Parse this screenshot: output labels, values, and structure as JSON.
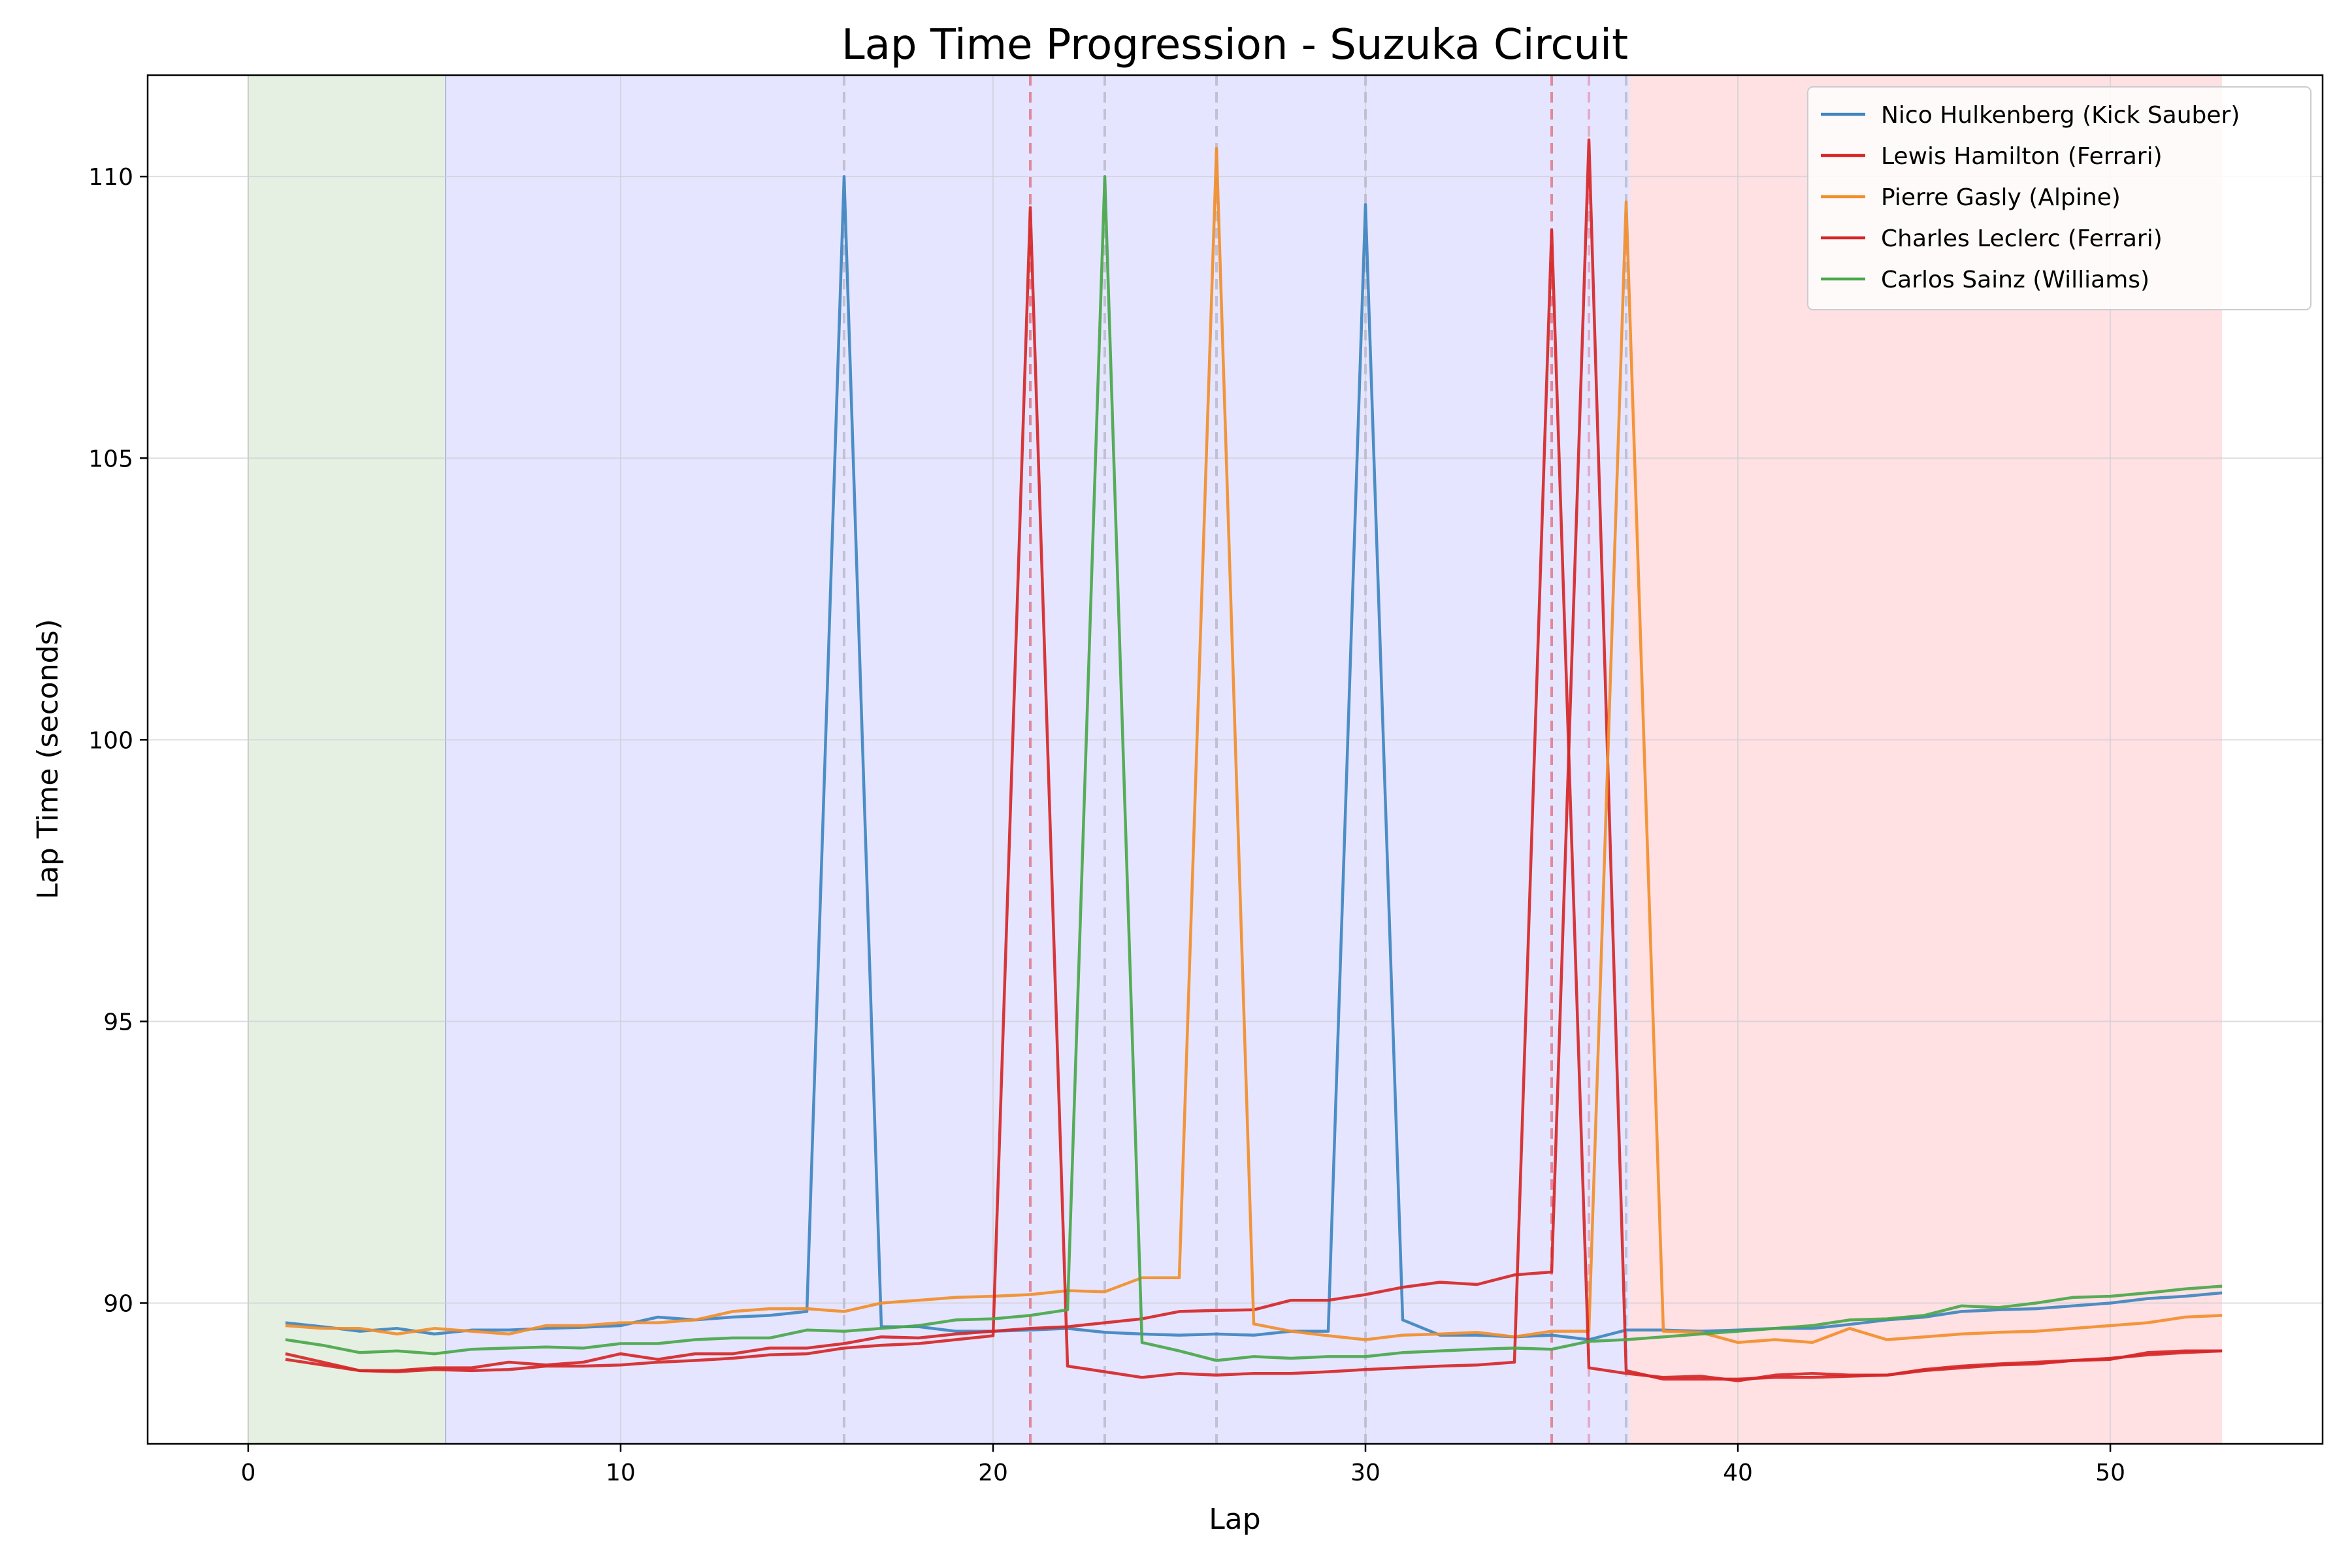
{
  "chart_data": {
    "type": "line",
    "title": "Lap Time Progression - Suzuka Circuit",
    "xlabel": "Lap",
    "ylabel": "Lap Time (seconds)",
    "xlim": [
      -2.7,
      55.7
    ],
    "ylim": [
      87.5,
      111.8
    ],
    "xticks": [
      0,
      10,
      20,
      30,
      40,
      50
    ],
    "yticks": [
      90,
      95,
      100,
      105,
      110
    ],
    "grid": true,
    "legend": "top-right",
    "phase_bands": [
      {
        "from": 0,
        "to": 5.3,
        "color": "#e5f0e3"
      },
      {
        "from": 5.3,
        "to": 37.1,
        "color": "#e5e5ff"
      },
      {
        "from": 37.1,
        "to": 53,
        "color": "#ffe0e3"
      }
    ],
    "pit_markers": [
      {
        "lap": 16,
        "color": "#bbbbcc"
      },
      {
        "lap": 21,
        "color": "#e07a8a"
      },
      {
        "lap": 23,
        "color": "#bbbbcc"
      },
      {
        "lap": 26,
        "color": "#bbbbcc"
      },
      {
        "lap": 30,
        "color": "#bbbbcc"
      },
      {
        "lap": 35,
        "color": "#e07a8a"
      },
      {
        "lap": 36,
        "color": "#e0a3bf"
      },
      {
        "lap": 37,
        "color": "#bbbbcc"
      }
    ],
    "series": [
      {
        "name": "Nico Hulkenberg (Kick Sauber)",
        "color": "#3f85c0",
        "x": [
          1,
          2,
          3,
          4,
          5,
          6,
          7,
          8,
          9,
          10,
          11,
          12,
          13,
          14,
          15,
          16,
          17,
          18,
          19,
          20,
          21,
          22,
          23,
          24,
          25,
          26,
          27,
          28,
          29,
          30,
          31,
          32,
          33,
          34,
          35,
          36,
          37,
          38,
          39,
          40,
          41,
          42,
          43,
          44,
          45,
          46,
          47,
          48,
          49,
          50,
          51,
          52,
          53
        ],
        "y": [
          89.65,
          89.58,
          89.5,
          89.55,
          89.45,
          89.52,
          89.52,
          89.55,
          89.57,
          89.6,
          89.75,
          89.7,
          89.75,
          89.78,
          89.85,
          110.0,
          89.58,
          89.58,
          89.5,
          89.5,
          89.52,
          89.55,
          89.48,
          89.45,
          89.43,
          89.45,
          89.43,
          89.5,
          89.5,
          109.5,
          89.7,
          89.43,
          89.43,
          89.4,
          89.43,
          89.35,
          89.52,
          89.52,
          89.5,
          89.52,
          89.55,
          89.55,
          89.62,
          89.7,
          89.75,
          89.85,
          89.88,
          89.9,
          89.95,
          90.0,
          90.08,
          90.12,
          90.18
        ]
      },
      {
        "name": "Lewis Hamilton (Ferrari)",
        "color": "#d62728",
        "x": [
          1,
          2,
          3,
          4,
          5,
          6,
          7,
          8,
          9,
          10,
          11,
          12,
          13,
          14,
          15,
          16,
          17,
          18,
          19,
          20,
          21,
          22,
          23,
          24,
          25,
          26,
          27,
          28,
          29,
          30,
          31,
          32,
          33,
          34,
          35,
          36,
          37,
          38,
          39,
          40,
          41,
          42,
          43,
          44,
          45,
          46,
          47,
          48,
          49,
          50,
          51,
          52,
          53
        ],
        "y": [
          89.0,
          88.9,
          88.8,
          88.8,
          88.85,
          88.85,
          88.95,
          88.9,
          88.95,
          89.1,
          89.0,
          89.1,
          89.1,
          89.2,
          89.2,
          89.28,
          89.4,
          89.38,
          89.45,
          89.5,
          89.55,
          89.58,
          89.65,
          89.72,
          89.85,
          89.87,
          89.88,
          90.05,
          90.05,
          90.15,
          90.28,
          90.37,
          90.33,
          90.5,
          90.55,
          110.65,
          88.8,
          88.65,
          88.65,
          88.65,
          88.68,
          88.68,
          88.7,
          88.72,
          88.82,
          88.88,
          88.92,
          88.95,
          88.98,
          89.02,
          89.08,
          89.12,
          89.15
        ]
      },
      {
        "name": "Pierre Gasly (Alpine)",
        "color": "#f28e2b",
        "x": [
          1,
          2,
          3,
          4,
          5,
          6,
          7,
          8,
          9,
          10,
          11,
          12,
          13,
          14,
          15,
          16,
          17,
          18,
          19,
          20,
          21,
          22,
          23,
          24,
          25,
          26,
          27,
          28,
          29,
          30,
          31,
          32,
          33,
          34,
          35,
          36,
          37,
          38,
          39,
          40,
          41,
          42,
          43,
          44,
          45,
          46,
          47,
          48,
          49,
          50,
          51,
          52,
          53
        ],
        "y": [
          89.6,
          89.55,
          89.55,
          89.45,
          89.55,
          89.5,
          89.45,
          89.6,
          89.6,
          89.65,
          89.65,
          89.7,
          89.85,
          89.9,
          89.9,
          89.85,
          90.0,
          90.05,
          90.1,
          90.12,
          90.15,
          90.22,
          90.2,
          90.45,
          90.45,
          110.5,
          89.63,
          89.5,
          89.42,
          89.35,
          89.43,
          89.45,
          89.48,
          89.4,
          89.5,
          89.5,
          109.55,
          89.5,
          89.48,
          89.3,
          89.35,
          89.3,
          89.55,
          89.35,
          89.4,
          89.45,
          89.48,
          89.5,
          89.55,
          89.6,
          89.65,
          89.75,
          89.78
        ]
      },
      {
        "name": "Charles Leclerc (Ferrari)",
        "color": "#d62728",
        "x": [
          1,
          2,
          3,
          4,
          5,
          6,
          7,
          8,
          9,
          10,
          11,
          12,
          13,
          14,
          15,
          16,
          17,
          18,
          19,
          20,
          21,
          22,
          23,
          24,
          25,
          26,
          27,
          28,
          29,
          30,
          31,
          32,
          33,
          34,
          35,
          36,
          37,
          38,
          39,
          40,
          41,
          42,
          43,
          44,
          45,
          46,
          47,
          48,
          49,
          50,
          51,
          52,
          53
        ],
        "y": [
          89.1,
          88.95,
          88.8,
          88.78,
          88.82,
          88.8,
          88.82,
          88.88,
          88.88,
          88.9,
          88.95,
          88.98,
          89.02,
          89.08,
          89.1,
          89.2,
          89.25,
          89.28,
          89.35,
          89.42,
          109.45,
          88.88,
          88.78,
          88.68,
          88.75,
          88.72,
          88.75,
          88.75,
          88.78,
          88.82,
          88.85,
          88.88,
          88.9,
          88.95,
          109.05,
          88.85,
          88.75,
          88.68,
          88.7,
          88.62,
          88.72,
          88.75,
          88.72,
          88.72,
          88.8,
          88.85,
          88.9,
          88.92,
          88.98,
          89.0,
          89.12,
          89.15,
          89.15
        ]
      },
      {
        "name": "Carlos Sainz (Williams)",
        "color": "#4aa74a",
        "x": [
          1,
          2,
          3,
          4,
          5,
          6,
          7,
          8,
          9,
          10,
          11,
          12,
          13,
          14,
          15,
          16,
          17,
          18,
          19,
          20,
          21,
          22,
          23,
          24,
          25,
          26,
          27,
          28,
          29,
          30,
          31,
          32,
          33,
          34,
          35,
          36,
          37,
          38,
          39,
          40,
          41,
          42,
          43,
          44,
          45,
          46,
          47,
          48,
          49,
          50,
          51,
          52,
          53
        ],
        "y": [
          89.35,
          89.25,
          89.12,
          89.15,
          89.1,
          89.18,
          89.2,
          89.22,
          89.2,
          89.28,
          89.28,
          89.35,
          89.38,
          89.38,
          89.52,
          89.5,
          89.55,
          89.6,
          89.7,
          89.72,
          89.78,
          89.88,
          110.0,
          89.3,
          89.15,
          88.98,
          89.05,
          89.02,
          89.05,
          89.05,
          89.12,
          89.15,
          89.18,
          89.2,
          89.18,
          89.32,
          89.35,
          89.4,
          89.45,
          89.5,
          89.55,
          89.6,
          89.7,
          89.72,
          89.78,
          89.95,
          89.92,
          90.0,
          90.1,
          90.12,
          90.18,
          90.25,
          90.3
        ]
      }
    ]
  }
}
